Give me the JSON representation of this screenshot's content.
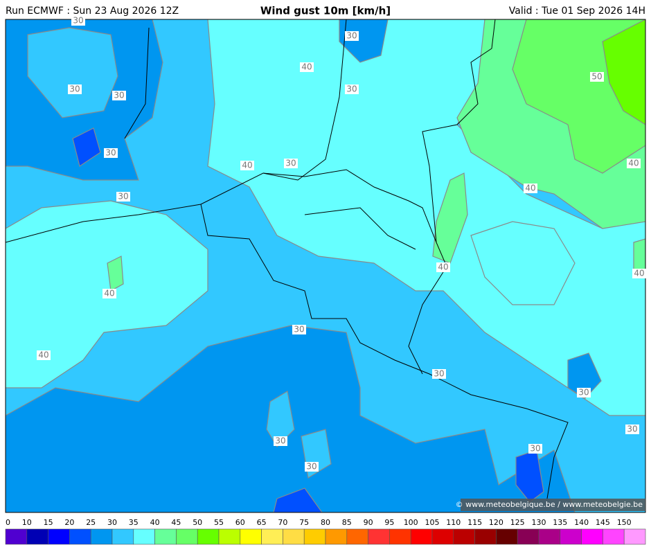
{
  "header": {
    "run": "Run ECMWF : Sun 23 Aug 2026 12Z",
    "title": "Wind gust 10m [km/h]",
    "valid": "Valid : Tue 01 Sep 2026 14H"
  },
  "contour_labels": [
    "30",
    "30",
    "30",
    "30",
    "30",
    "30",
    "30",
    "30",
    "30",
    "30",
    "30",
    "30",
    "30",
    "30",
    "30",
    "40",
    "40",
    "40",
    "40",
    "40",
    "40",
    "40",
    "40",
    "50"
  ],
  "copyright": "© www.meteobelgique.be / www.meteobelgie.be",
  "colorbar": {
    "labels": [
      0,
      10,
      15,
      20,
      25,
      30,
      35,
      40,
      45,
      50,
      55,
      60,
      65,
      70,
      75,
      80,
      85,
      90,
      95,
      100,
      105,
      110,
      115,
      120,
      125,
      130,
      135,
      140,
      145,
      150
    ],
    "colors": [
      "#5000d0",
      "#0000b4",
      "#0000ff",
      "#0050ff",
      "#0096f0",
      "#32c8ff",
      "#66ffff",
      "#66ff99",
      "#66ff66",
      "#66ff00",
      "#bbff00",
      "#ffff00",
      "#ffee55",
      "#ffdd44",
      "#ffcc00",
      "#ff9900",
      "#ff6600",
      "#ff3333",
      "#ff3300",
      "#ff0000",
      "#dd0000",
      "#bb0000",
      "#990000",
      "#660000",
      "#880055",
      "#aa0088",
      "#cc00cc",
      "#ff00ff",
      "#ff44ff",
      "#ff99ff"
    ]
  }
}
